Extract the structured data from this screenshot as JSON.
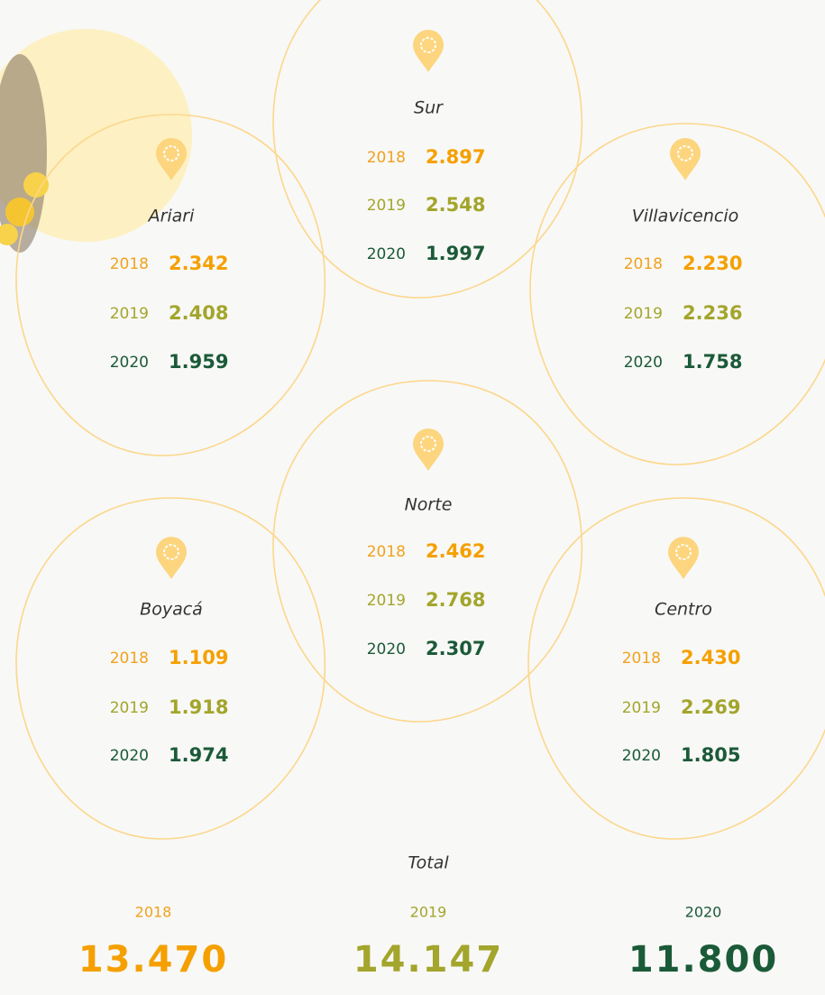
{
  "regions": [
    {
      "name": "Ariari",
      "rows": [
        {
          "year": "2018",
          "value": "2.342"
        },
        {
          "year": "2019",
          "value": "2.408"
        },
        {
          "year": "2020",
          "value": "1.959"
        }
      ]
    },
    {
      "name": "Sur",
      "rows": [
        {
          "year": "2018",
          "value": "2.897"
        },
        {
          "year": "2019",
          "value": "2.548"
        },
        {
          "year": "2020",
          "value": "1.997"
        }
      ]
    },
    {
      "name": "Villavicencio",
      "rows": [
        {
          "year": "2018",
          "value": "2.230"
        },
        {
          "year": "2019",
          "value": "2.236"
        },
        {
          "year": "2020",
          "value": "1.758"
        }
      ]
    },
    {
      "name": "Norte",
      "rows": [
        {
          "year": "2018",
          "value": "2.462"
        },
        {
          "year": "2019",
          "value": "2.768"
        },
        {
          "year": "2020",
          "value": "2.307"
        }
      ]
    },
    {
      "name": "Boyacá",
      "rows": [
        {
          "year": "2018",
          "value": "1.109"
        },
        {
          "year": "2019",
          "value": "1.918"
        },
        {
          "year": "2020",
          "value": "1.974"
        }
      ]
    },
    {
      "name": "Centro",
      "rows": [
        {
          "year": "2018",
          "value": "2.430"
        },
        {
          "year": "2019",
          "value": "2.269"
        },
        {
          "year": "2020",
          "value": "1.805"
        }
      ]
    }
  ],
  "total": {
    "label": "Total",
    "rows": [
      {
        "year": "2018",
        "value": "13.470"
      },
      {
        "year": "2019",
        "value": "14.147"
      },
      {
        "year": "2020",
        "value": "11.800"
      }
    ]
  }
}
